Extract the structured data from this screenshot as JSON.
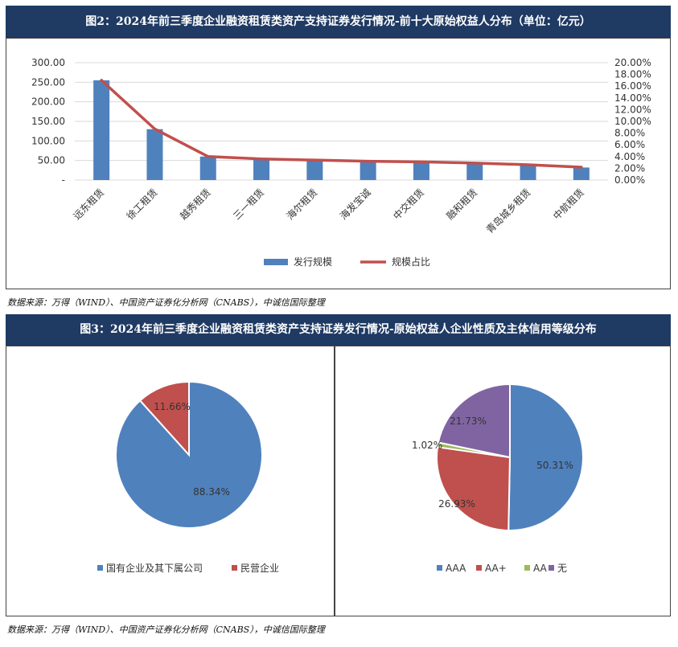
{
  "fig2": {
    "title": "图2：2024年前三季度企业融资租赁类资产支持证券发行情况-前十大原始权益人分布（单位：亿元）",
    "source": "数据来源：万得（WIND）、中国资产证券化分析网（CNABS），中诚信国际整理"
  },
  "fig3": {
    "title": "图3：2024年前三季度企业融资租赁类资产支持证券发行情况-原始权益人企业性质及主体信用等级分布",
    "source": "数据来源：万得（WIND）、中国资产证券化分析网（CNABS），中诚信国际整理"
  },
  "chart_data": [
    {
      "type": "bar",
      "title": "",
      "categories": [
        "远东租赁",
        "徐工租赁",
        "越秀租赁",
        "三一租赁",
        "海尔租赁",
        "海发宝诚",
        "中交租赁",
        "融和租赁",
        "青岛城乡租赁",
        "中航租赁"
      ],
      "series": [
        {
          "name": "发行规模",
          "type": "bar",
          "axis": "left",
          "color": "#4f81bd",
          "values": [
            255,
            130,
            60,
            55,
            50,
            48,
            47,
            44,
            40,
            32
          ]
        },
        {
          "name": "规模占比",
          "type": "line",
          "axis": "right",
          "color": "#c0504d",
          "values": [
            17.0,
            8.7,
            4.0,
            3.6,
            3.4,
            3.2,
            3.1,
            2.9,
            2.6,
            2.2
          ]
        }
      ],
      "y_left": {
        "ylim": [
          0,
          300
        ],
        "ticks": [
          "-",
          "50.00",
          "100.00",
          "150.00",
          "200.00",
          "250.00",
          "300.00"
        ]
      },
      "y_right": {
        "ylim": [
          0,
          20
        ],
        "ticks": [
          "0.00%",
          "2.00%",
          "4.00%",
          "6.00%",
          "8.00%",
          "10.00%",
          "12.00%",
          "14.00%",
          "16.00%",
          "18.00%",
          "20.00%"
        ]
      },
      "grid": true,
      "legend": "bottom"
    },
    {
      "type": "pie",
      "labels": [
        "国有企业及其下属公司",
        "民营企业"
      ],
      "values": [
        88.34,
        11.66
      ],
      "value_labels": [
        "88.34%",
        "11.66%"
      ],
      "colors": [
        "#4f81bd",
        "#c0504d"
      ],
      "legend": "bottom"
    },
    {
      "type": "pie",
      "labels": [
        "AAA",
        "AA+",
        "AA",
        "无"
      ],
      "values": [
        50.31,
        26.93,
        1.02,
        21.73
      ],
      "value_labels": [
        "50.31%",
        "26.93%",
        "1.02%",
        "21.73%"
      ],
      "colors": [
        "#4f81bd",
        "#c0504d",
        "#9bbb59",
        "#8064a2"
      ],
      "legend": "bottom"
    }
  ]
}
